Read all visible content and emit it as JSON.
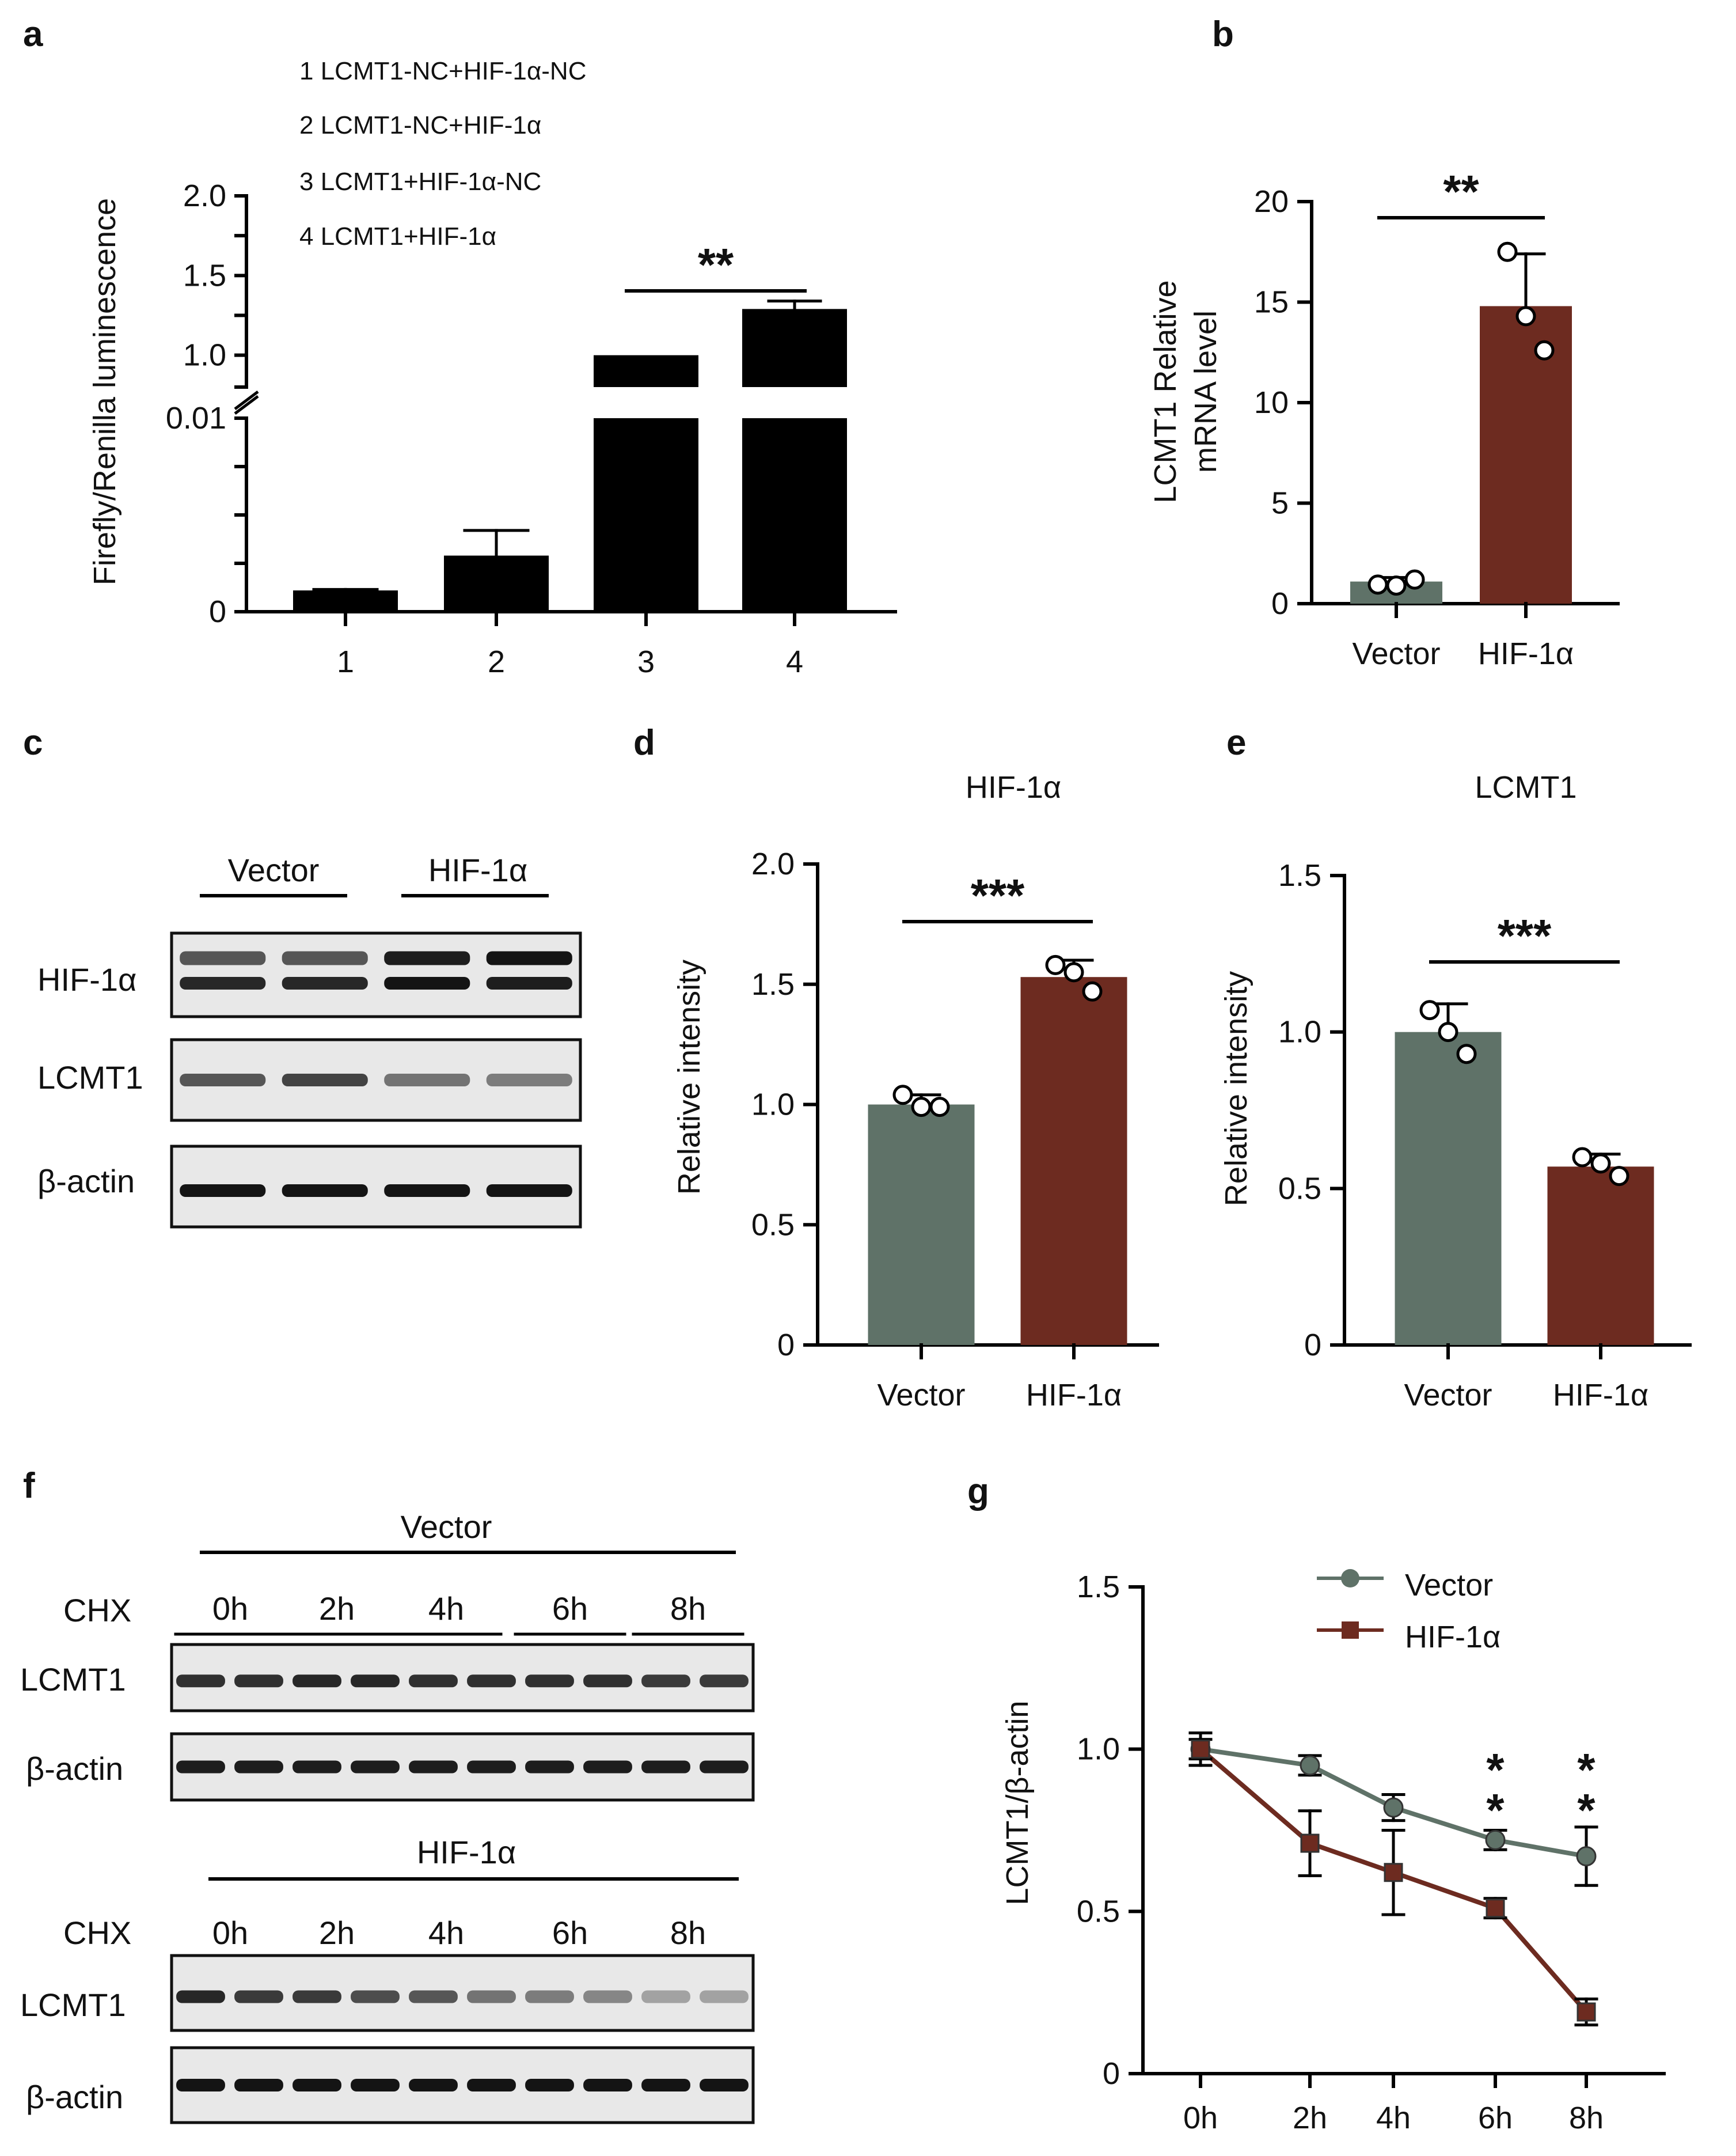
{
  "colors": {
    "vector": "#5f7268",
    "hif": "#6d2b20",
    "black": "#000000"
  },
  "chart_data": [
    {
      "panel": "a",
      "type": "bar",
      "ylabel": "Firefly/Renilla luminescence",
      "categories": [
        "1",
        "2",
        "3",
        "4"
      ],
      "values": [
        0.0011,
        0.0029,
        1.0,
        1.29
      ],
      "errors": [
        5e-05,
        0.0013,
        0,
        0.05
      ],
      "lower_ticks": [
        "0",
        "0.01"
      ],
      "upper_ticks": [
        "1.0",
        "1.5",
        "2.0"
      ],
      "ylim_lower": [
        0,
        0.01
      ],
      "ylim_upper": [
        0.8,
        2.0
      ],
      "legend": [
        "1 LCMT1-NC+HIF-1α-NC",
        "2 LCMT1-NC+HIF-1α",
        "3 LCMT1+HIF-1α-NC",
        "4 LCMT1+HIF-1α"
      ],
      "significance": "**"
    },
    {
      "panel": "b",
      "type": "bar",
      "ylabel_lines": [
        "LCMT1 Relative",
        "mRNA level"
      ],
      "categories": [
        "Vector",
        "HIF-1α"
      ],
      "values": [
        1.1,
        14.8
      ],
      "errors": [
        0.2,
        2.6
      ],
      "points": [
        [
          0.95,
          0.9,
          1.2
        ],
        [
          17.5,
          14.3,
          12.6
        ]
      ],
      "ylim": [
        0,
        20
      ],
      "yticks": [
        "0",
        "5",
        "10",
        "15",
        "20"
      ],
      "ytick_values": [
        0,
        5,
        10,
        15,
        20
      ],
      "significance": "**"
    },
    {
      "panel": "d",
      "type": "bar",
      "title": "HIF-1α",
      "ylabel": "Relative intensity",
      "categories": [
        "Vector",
        "HIF-1α"
      ],
      "values": [
        1.0,
        1.53
      ],
      "errors": [
        0.04,
        0.07
      ],
      "points": [
        [
          1.04,
          0.99,
          0.99
        ],
        [
          1.58,
          1.55,
          1.47
        ]
      ],
      "ylim": [
        0,
        2.0
      ],
      "yticks": [
        "0",
        "0.5",
        "1.0",
        "1.5",
        "2.0"
      ],
      "ytick_values": [
        0,
        0.5,
        1.0,
        1.5,
        2.0
      ],
      "significance": "***"
    },
    {
      "panel": "e",
      "type": "bar",
      "title": "LCMT1",
      "ylabel": "Relative intensity",
      "categories": [
        "Vector",
        "HIF-1α"
      ],
      "values": [
        1.0,
        0.57
      ],
      "errors": [
        0.09,
        0.04
      ],
      "points": [
        [
          1.07,
          1.0,
          0.93
        ],
        [
          0.6,
          0.58,
          0.54
        ]
      ],
      "ylim": [
        0,
        1.5
      ],
      "yticks": [
        "0",
        "0.5",
        "1.0",
        "1.5"
      ],
      "ytick_values": [
        0,
        0.5,
        1.0,
        1.5
      ],
      "significance": "***"
    },
    {
      "panel": "g",
      "type": "line",
      "ylabel": "LCMT1/β-actin",
      "x": [
        "0h",
        "2h",
        "4h",
        "6h",
        "8h"
      ],
      "series": [
        {
          "name": "Vector",
          "values": [
            1.0,
            0.95,
            0.82,
            0.72,
            0.67
          ],
          "errors": [
            0.05,
            0.03,
            0.04,
            0.03,
            0.09
          ]
        },
        {
          "name": "HIF-1α",
          "values": [
            1.0,
            0.71,
            0.62,
            0.51,
            0.19
          ],
          "errors": [
            0.03,
            0.1,
            0.13,
            0.03,
            0.04
          ]
        }
      ],
      "ylim": [
        0,
        1.5
      ],
      "yticks": [
        "0",
        "0.5",
        "1.0",
        "1.5"
      ],
      "ytick_values": [
        0,
        0.5,
        1.0,
        1.5
      ],
      "significance": [
        {
          "x": "6h",
          "label": "**"
        },
        {
          "x": "8h",
          "label": "**"
        }
      ]
    }
  ],
  "panel_labels": [
    "a",
    "b",
    "c",
    "d",
    "e",
    "f",
    "g"
  ],
  "blots": {
    "c": {
      "groups": [
        "Vector",
        "HIF-1α"
      ],
      "rows": [
        "HIF-1α",
        "LCMT1",
        "β-actin"
      ]
    },
    "f": {
      "top_title": "Vector",
      "bottom_title": "HIF-1α",
      "chx_label": "CHX",
      "times": [
        "0h",
        "2h",
        "4h",
        "6h",
        "8h"
      ],
      "rows": [
        "LCMT1",
        "β-actin"
      ]
    }
  }
}
